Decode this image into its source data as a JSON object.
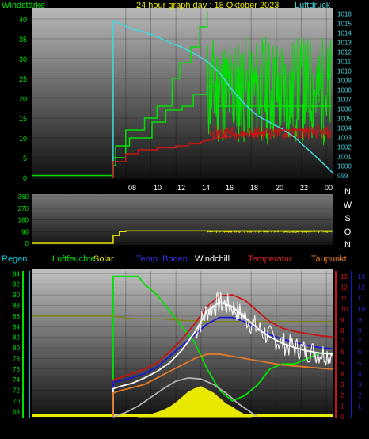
{
  "colors": {
    "green": "#00e000",
    "cyan": "#40d8e0",
    "yellow": "#e8e800",
    "red": "#c81414",
    "blue": "#1818d0",
    "white": "#ffffff",
    "orange": "#e07828",
    "olive": "#808000",
    "lightgreen": "#40c040",
    "grey": "#b0b0b0"
  },
  "chart_data": [
    {
      "type": "line",
      "title": "24 hour graph day : 18 Oktober 2023",
      "left_axis_label": "Windstärke",
      "right_axis_label": "Luftdruck",
      "x_ticks": [
        "08",
        "10",
        "12",
        "14",
        "16",
        "18",
        "20",
        "22",
        "00"
      ],
      "left_ticks": [
        "0",
        "5",
        "10",
        "15",
        "20",
        "25",
        "30",
        "35",
        "40"
      ],
      "right_ticks": [
        "999",
        "1000",
        "1001",
        "1002",
        "1003",
        "1004",
        "1005",
        "1006",
        "1007",
        "1008",
        "1009",
        "1010",
        "1011",
        "1012",
        "1013",
        "1014",
        "1015",
        "1016"
      ],
      "ylim_left": [
        0,
        42
      ],
      "ylim_right": [
        998.8,
        1016.3
      ],
      "series": [
        {
          "name": "Windstärke",
          "axis": "left",
          "color": "green",
          "x": [
            0,
            6.5,
            6.5,
            6.7,
            6.7,
            7.8,
            7.8,
            9.6,
            9.6,
            10.7,
            10.7,
            12.0,
            12.0,
            12.9,
            12.9,
            14.0,
            14.0,
            14.9,
            14.9,
            23.9
          ],
          "y": [
            0.5,
            0.5,
            3,
            3,
            8,
            8,
            10,
            10,
            14,
            14,
            17,
            17,
            18,
            18,
            21,
            21,
            23,
            23,
            18,
            18
          ]
        },
        {
          "name": "Windböen",
          "axis": "left",
          "color": "green",
          "x": [
            6.5,
            6.5,
            7.5,
            7.5,
            9.0,
            9.0,
            10.0,
            10.0,
            11.2,
            11.2,
            11.8,
            11.8,
            12.7,
            12.7,
            13.4,
            13.4,
            14.0,
            14.0
          ],
          "y": [
            0,
            5,
            5,
            12,
            12,
            15,
            15,
            18,
            18,
            25,
            25,
            29,
            29,
            33,
            33,
            38,
            38,
            42
          ]
        },
        {
          "name": "Luftdruck",
          "axis": "right",
          "color": "cyan",
          "x": [
            6.5,
            6.5,
            7.0,
            8.0,
            9.0,
            10.0,
            11.0,
            12.0,
            13.0,
            14.0,
            15.0,
            16.0,
            17.0,
            18.0,
            19.0,
            20.0,
            21.0,
            22.0,
            23.0,
            24.0
          ],
          "y": [
            998.9,
            1015.3,
            1015.0,
            1014.4,
            1014.1,
            1013.6,
            1013.0,
            1012.5,
            1011.8,
            1011.0,
            1009.8,
            1008.0,
            1006.5,
            1005.3,
            1004.6,
            1003.9,
            1003.0,
            1001.8,
            1000.6,
            999.3
          ]
        },
        {
          "name": "Temperatur",
          "axis": "left",
          "color": "red",
          "x": [
            6.5,
            6.5,
            7.5,
            7.5,
            8.5,
            8.5,
            10.0,
            10.0,
            11.5,
            11.5,
            12.5,
            12.5,
            13.5,
            13.5,
            15.0,
            16.0,
            17.0,
            18.0,
            19.0,
            20.0,
            21.0,
            22.0,
            23.0,
            23.8
          ],
          "y": [
            0,
            4,
            4,
            6,
            6,
            7,
            7,
            7.5,
            7.5,
            8,
            8,
            8.5,
            8.5,
            9,
            10,
            10.5,
            11,
            11,
            11.5,
            12,
            12,
            12,
            11.5,
            11
          ]
        }
      ]
    },
    {
      "type": "line",
      "title": "",
      "y_ticks": [
        "0",
        "90",
        "180",
        "270",
        "360"
      ],
      "right_labels": [
        "N",
        "W",
        "S",
        "O",
        "N"
      ],
      "ylim": [
        0,
        360
      ],
      "x": [
        0,
        6.5,
        6.5,
        7.0,
        7.0,
        7.5,
        7.5,
        14.0,
        24.0
      ],
      "y": [
        0,
        0,
        60,
        60,
        90,
        90,
        95,
        95,
        95
      ]
    },
    {
      "type": "line",
      "title": "",
      "legend": [
        "Regen",
        "Luftfeuchte",
        "Solar",
        "Temp. Boden",
        "Windchill",
        "Temperatur",
        "Taupunkt"
      ],
      "left_ticks": [
        "68",
        "70",
        "72",
        "74",
        "76",
        "78",
        "80",
        "82",
        "84",
        "86",
        "88",
        "90",
        "92",
        "94"
      ],
      "right_ticks_red": [
        "0",
        "1",
        "2",
        "3",
        "4",
        "5",
        "6",
        "7",
        "8",
        "9",
        "10",
        "11",
        "12",
        "13"
      ],
      "right_ticks_blue": [
        "1",
        "2",
        "3",
        "4",
        "5",
        "6",
        "7",
        "8",
        "9",
        "10",
        "11",
        "12",
        "13"
      ],
      "ylim_left": [
        67,
        94.5
      ],
      "ylim_right": [
        0,
        13.5
      ],
      "series": [
        {
          "name": "Luftfeuchte",
          "axis": "left",
          "color": "green",
          "x": [
            6.5,
            6.5,
            7.0,
            8.5,
            9.0,
            10.0,
            11.0,
            12.0,
            13.0,
            14.0,
            15.0,
            16.0,
            17.0,
            18.0,
            19.0,
            20.0,
            21.0,
            22.0,
            23.0,
            24.0
          ],
          "y": [
            67,
            93.5,
            93.5,
            93.5,
            92,
            90,
            87,
            84,
            81,
            76,
            72,
            70,
            71,
            73,
            76,
            77,
            77,
            78,
            79,
            79
          ]
        },
        {
          "name": "Luftfeuchte min",
          "axis": "left",
          "color": "olive",
          "x": [
            0,
            6.5,
            7.0,
            8.0,
            10.0,
            12.0,
            14.0,
            16.0,
            18.0,
            20.0,
            22.0,
            24.0
          ],
          "y": [
            86,
            86,
            85.8,
            85.5,
            85.5,
            85.2,
            85,
            85,
            85,
            85,
            85,
            85
          ]
        },
        {
          "name": "Temperatur",
          "axis": "right",
          "color": "red",
          "x": [
            6.5,
            6.5,
            7.0,
            8.0,
            9.0,
            10.0,
            11.0,
            12.0,
            13.0,
            14.0,
            15.0,
            16.0,
            17.0,
            18.0,
            19.0,
            20.0,
            21.0,
            22.0,
            23.0,
            24.0
          ],
          "y": [
            0,
            3.4,
            3.6,
            4.0,
            4.4,
            5.0,
            6.0,
            7.2,
            8.6,
            10.2,
            11.2,
            11.3,
            10.8,
            9.8,
            8.8,
            8.2,
            7.9,
            7.7,
            7.5,
            7.4
          ]
        },
        {
          "name": "Temp. Boden",
          "axis": "right",
          "color": "blue",
          "x": [
            6.5,
            6.5,
            7.0,
            8.0,
            9.0,
            10.0,
            11.0,
            12.0,
            13.0,
            14.0,
            15.0,
            16.0,
            17.0,
            18.0,
            19.0,
            20.0,
            21.0,
            22.0,
            23.0,
            24.0
          ],
          "y": [
            0,
            3.2,
            3.3,
            3.6,
            4.0,
            4.6,
            5.6,
            6.6,
            7.6,
            8.6,
            9.2,
            9.2,
            8.8,
            8.2,
            7.6,
            7.2,
            6.9,
            6.6,
            6.4,
            6.3
          ]
        },
        {
          "name": "Windchill",
          "axis": "right",
          "color": "white",
          "x": [
            6.5,
            6.5,
            7.0,
            8.0,
            9.0,
            10.0,
            11.0,
            12.0,
            13.0,
            14.0,
            15.0,
            16.0,
            17.0,
            18.0,
            19.0,
            20.0,
            21.0,
            22.0,
            23.0,
            24.0
          ],
          "y": [
            0,
            2.6,
            2.8,
            3.1,
            3.6,
            4.2,
            5.0,
            6.2,
            7.8,
            9.8,
            10.6,
            10.2,
            9.2,
            8.2,
            7.4,
            6.8,
            6.4,
            6.1,
            5.9,
            5.8
          ]
        },
        {
          "name": "Taupunkt",
          "axis": "right",
          "color": "orange",
          "x": [
            6.5,
            6.5,
            7.0,
            8.0,
            9.0,
            10.0,
            11.0,
            12.0,
            13.0,
            14.0,
            15.0,
            16.0,
            17.0,
            18.0,
            19.0,
            20.0,
            21.0,
            22.0,
            23.0,
            24.0
          ],
          "y": [
            0,
            2.2,
            2.4,
            2.7,
            3.0,
            3.6,
            4.2,
            4.8,
            5.4,
            5.8,
            5.8,
            5.6,
            5.4,
            5.2,
            5.0,
            4.8,
            4.7,
            4.6,
            4.5,
            4.4
          ]
        },
        {
          "name": "Solar max",
          "axis": "right",
          "color": "grey",
          "x": [
            6.5,
            7.5,
            8.5,
            9.5,
            10.5,
            11.5,
            12.5,
            13.5,
            14.5,
            15.5,
            16.5,
            17.5,
            18.0
          ],
          "y": [
            0,
            0.4,
            1.0,
            1.8,
            2.6,
            3.3,
            3.6,
            3.5,
            3.0,
            2.2,
            1.2,
            0.4,
            0
          ]
        },
        {
          "name": "Solar",
          "axis": "right",
          "color": "yellow",
          "x": [
            8.5,
            9.5,
            10.0,
            10.5,
            11.0,
            11.5,
            12.0,
            12.5,
            13.0,
            13.5,
            14.0,
            14.5,
            15.0,
            15.5,
            16.0,
            16.5,
            17.0,
            17.5
          ],
          "y": [
            0.05,
            0.2,
            0.4,
            0.6,
            0.9,
            1.3,
            1.8,
            2.3,
            2.6,
            2.8,
            2.5,
            2.2,
            1.7,
            1.2,
            0.9,
            0.5,
            0.2,
            0.05
          ]
        }
      ]
    }
  ],
  "bottom_legend": {
    "regen": "Regen",
    "luftfeuchte": "Luftfeuchte",
    "solar": "Solar",
    "temp_boden": "Temp. Boden",
    "windchill": "Windchill",
    "temperatur": "Temperatur",
    "taupunkt": "Taupunkt"
  }
}
